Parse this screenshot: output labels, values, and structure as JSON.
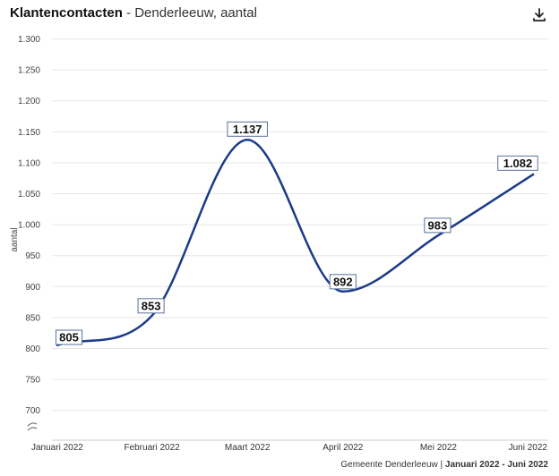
{
  "header": {
    "title_main": "Klantencontacten",
    "title_rest": " - Denderleeuw, aantal",
    "download_icon": "download-icon"
  },
  "footer": {
    "source": "Gemeente Denderleeuw",
    "separator": " | ",
    "period": "Januari 2022 - Juni 2022"
  },
  "chart_data": {
    "type": "line",
    "title": "Klantencontacten",
    "subtitle": "Denderleeuw, aantal",
    "ylabel": "aantal",
    "xlabel": "",
    "categories": [
      "Januari 2022",
      "Februari 2022",
      "Maart 2022",
      "April 2022",
      "Mei 2022",
      "Juni 2022"
    ],
    "series": [
      {
        "values": [
          805,
          853,
          1137,
          892,
          983,
          1082
        ],
        "data_labels": [
          "805",
          "853",
          "1.137",
          "892",
          "983",
          "1.082"
        ]
      }
    ],
    "yticks": [
      700,
      750,
      800,
      850,
      900,
      950,
      1000,
      1050,
      1100,
      1150,
      1200,
      1250,
      1300
    ],
    "ytick_labels": [
      "700",
      "750",
      "800",
      "850",
      "900",
      "950",
      "1.000",
      "1.050",
      "1.100",
      "1.150",
      "1.200",
      "1.250",
      "1.300"
    ],
    "ylim": [
      700,
      1300
    ],
    "axis_break": true,
    "grid": true,
    "line_color": "#1a3a8a",
    "grid_color": "#e6e6e6"
  }
}
